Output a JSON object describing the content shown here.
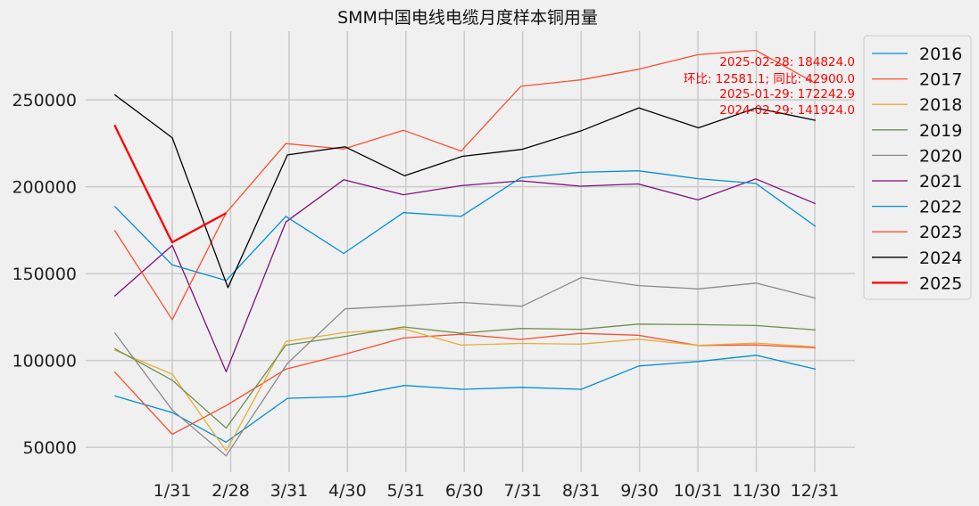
{
  "chart_data": {
    "type": "line",
    "title": "SMM中国电线电缆月度样本铜用量",
    "xlabel": "",
    "ylabel": "",
    "x": [
      "1/31",
      "2/28",
      "3/31",
      "4/30",
      "5/31",
      "6/30",
      "7/31",
      "8/31",
      "9/30",
      "10/31",
      "11/30",
      "12/31"
    ],
    "yticks": [
      50000,
      100000,
      150000,
      200000,
      250000
    ],
    "ylim": [
      35000,
      290000
    ],
    "grid": true,
    "legend_position": "right",
    "series": [
      {
        "name": "2016",
        "color": "#008fd5",
        "width": 1.3,
        "points": [
          [
            "2016-01-01",
            79600
          ],
          [
            "2016-01-31",
            70000
          ],
          [
            "2016-02-28",
            53000
          ],
          [
            "2016-03-31",
            78200
          ],
          [
            "2016-04-30",
            79200
          ],
          [
            "2016-05-31",
            85600
          ],
          [
            "2016-06-30",
            83400
          ],
          [
            "2016-07-31",
            84500
          ],
          [
            "2016-08-31",
            83400
          ],
          [
            "2016-09-30",
            96800
          ],
          [
            "2016-10-31",
            99400
          ],
          [
            "2016-11-30",
            103000
          ],
          [
            "2016-12-31",
            95000
          ]
        ]
      },
      {
        "name": "2017",
        "color": "#fc4f30",
        "width": 1.3,
        "points": [
          [
            "2017-01-01",
            93500
          ],
          [
            "2017-01-31",
            57500
          ],
          [
            "2017-02-28",
            74000
          ],
          [
            "2017-03-31",
            95000
          ],
          [
            "2017-04-30",
            103400
          ],
          [
            "2017-05-31",
            112900
          ],
          [
            "2017-06-30",
            115100
          ],
          [
            "2017-07-31",
            112100
          ],
          [
            "2017-08-31",
            115600
          ],
          [
            "2017-09-30",
            114500
          ],
          [
            "2017-10-31",
            108600
          ],
          [
            "2017-11-30",
            108900
          ],
          [
            "2017-12-31",
            107300
          ]
        ]
      },
      {
        "name": "2018",
        "color": "#e5ae38",
        "width": 1.3,
        "points": [
          [
            "2018-01-01",
            106000
          ],
          [
            "2018-01-31",
            92100
          ],
          [
            "2018-02-28",
            48000
          ],
          [
            "2018-03-31",
            110900
          ],
          [
            "2018-04-30",
            116000
          ],
          [
            "2018-05-31",
            118200
          ],
          [
            "2018-06-30",
            108800
          ],
          [
            "2018-07-31",
            109800
          ],
          [
            "2018-08-31",
            109400
          ],
          [
            "2018-09-30",
            112200
          ],
          [
            "2018-10-31",
            108700
          ],
          [
            "2018-11-30",
            110000
          ],
          [
            "2018-12-31",
            107800
          ]
        ]
      },
      {
        "name": "2019",
        "color": "#6d904f",
        "width": 1.3,
        "points": [
          [
            "2019-01-01",
            106800
          ],
          [
            "2019-01-31",
            88600
          ],
          [
            "2019-02-28",
            61100
          ],
          [
            "2019-03-31",
            108800
          ],
          [
            "2019-04-30",
            113700
          ],
          [
            "2019-05-31",
            119300
          ],
          [
            "2019-06-30",
            115700
          ],
          [
            "2019-07-31",
            118400
          ],
          [
            "2019-08-31",
            117900
          ],
          [
            "2019-09-30",
            120900
          ],
          [
            "2019-10-31",
            120600
          ],
          [
            "2019-11-30",
            120100
          ],
          [
            "2019-12-31",
            117600
          ]
        ]
      },
      {
        "name": "2020",
        "color": "#8b8b8b",
        "width": 1.3,
        "points": [
          [
            "2020-01-01",
            116000
          ],
          [
            "2020-01-31",
            71500
          ],
          [
            "2020-02-28",
            45100
          ],
          [
            "2020-03-31",
            98300
          ],
          [
            "2020-04-30",
            129700
          ],
          [
            "2020-05-31",
            131500
          ],
          [
            "2020-06-30",
            133400
          ],
          [
            "2020-07-31",
            131200
          ],
          [
            "2020-08-31",
            147700
          ],
          [
            "2020-09-30",
            143100
          ],
          [
            "2020-10-31",
            141200
          ],
          [
            "2020-11-30",
            144500
          ],
          [
            "2020-12-31",
            135800
          ]
        ]
      },
      {
        "name": "2021",
        "color": "#810f7c",
        "width": 1.3,
        "points": [
          [
            "2021-01-01",
            137000
          ],
          [
            "2021-01-31",
            166200
          ],
          [
            "2021-02-28",
            93500
          ],
          [
            "2021-03-31",
            179700
          ],
          [
            "2021-04-30",
            204000
          ],
          [
            "2021-05-31",
            195400
          ],
          [
            "2021-06-30",
            200600
          ],
          [
            "2021-07-31",
            203400
          ],
          [
            "2021-08-31",
            200300
          ],
          [
            "2021-09-30",
            201600
          ],
          [
            "2021-10-31",
            192400
          ],
          [
            "2021-11-30",
            204500
          ],
          [
            "2021-12-31",
            190200
          ]
        ]
      },
      {
        "name": "2022",
        "color": "#008fd5",
        "width": 1.3,
        "points": [
          [
            "2022-01-01",
            188800
          ],
          [
            "2022-01-31",
            155000
          ],
          [
            "2022-02-28",
            146000
          ],
          [
            "2022-03-31",
            182900
          ],
          [
            "2022-04-30",
            161600
          ],
          [
            "2022-05-31",
            185100
          ],
          [
            "2022-06-30",
            182900
          ],
          [
            "2022-07-31",
            205200
          ],
          [
            "2022-08-31",
            208300
          ],
          [
            "2022-09-30",
            209200
          ],
          [
            "2022-10-31",
            204600
          ],
          [
            "2022-11-30",
            201900
          ],
          [
            "2022-12-31",
            177200
          ]
        ]
      },
      {
        "name": "2023",
        "color": "#fc4f30",
        "width": 1.3,
        "points": [
          [
            "2023-01-01",
            175000
          ],
          [
            "2023-01-31",
            123500
          ],
          [
            "2023-02-28",
            185000
          ],
          [
            "2023-03-31",
            224800
          ],
          [
            "2023-04-30",
            221700
          ],
          [
            "2023-05-31",
            232500
          ],
          [
            "2023-06-30",
            220500
          ],
          [
            "2023-07-31",
            257800
          ],
          [
            "2023-08-31",
            261500
          ],
          [
            "2023-09-30",
            267600
          ],
          [
            "2023-10-31",
            276000
          ],
          [
            "2023-11-30",
            278500
          ],
          [
            "2023-12-31",
            259500
          ]
        ]
      },
      {
        "name": "2024",
        "color": "#000000",
        "width": 1.3,
        "points": [
          [
            "2024-01-01",
            253000
          ],
          [
            "2024-01-31",
            228200
          ],
          [
            "2024-02-29",
            141924
          ],
          [
            "2024-03-31",
            218300
          ],
          [
            "2024-04-30",
            223000
          ],
          [
            "2024-05-31",
            206300
          ],
          [
            "2024-06-30",
            217500
          ],
          [
            "2024-07-31",
            221500
          ],
          [
            "2024-08-31",
            232200
          ],
          [
            "2024-09-30",
            245400
          ],
          [
            "2024-10-31",
            233900
          ],
          [
            "2024-11-30",
            245300
          ],
          [
            "2024-12-31",
            238200
          ]
        ]
      },
      {
        "name": "2025",
        "color": "#ff0000",
        "width": 2.3,
        "points": [
          [
            "2025-01-01",
            235500
          ],
          [
            "2025-01-29",
            172242.9
          ],
          [
            "2025-01-31",
            168000
          ],
          [
            "2025-02-28",
            184824.0
          ]
        ]
      }
    ],
    "annotations": [
      "2025-02-28: 184824.0",
      "环比: 12581.1; 同比: 42900.0",
      "2025-01-29: 172242.9",
      "2024-02-29: 141924.0"
    ]
  }
}
